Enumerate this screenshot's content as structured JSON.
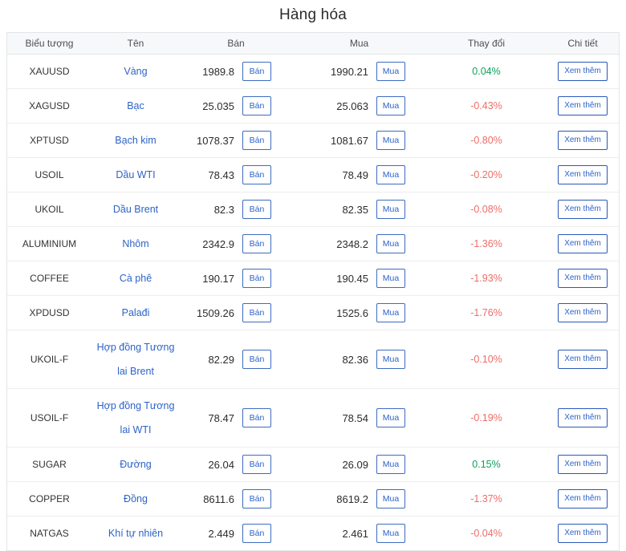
{
  "title": "Hàng hóa",
  "table": {
    "headers": {
      "symbol": "Biểu tượng",
      "name": "Tên",
      "sell": "Bán",
      "buy": "Mua",
      "change": "Thay đổi",
      "details": "Chi tiết"
    },
    "sell_button_label": "Bán",
    "buy_button_label": "Mua",
    "details_button_label": "Xem thêm",
    "rows": [
      {
        "symbol": "XAUUSD",
        "name": "Vàng",
        "sell": "1989.8",
        "buy": "1990.21",
        "change": "0.04%",
        "direction": "up"
      },
      {
        "symbol": "XAGUSD",
        "name": "Bạc",
        "sell": "25.035",
        "buy": "25.063",
        "change": "-0.43%",
        "direction": "down"
      },
      {
        "symbol": "XPTUSD",
        "name": "Bạch kim",
        "sell": "1078.37",
        "buy": "1081.67",
        "change": "-0.80%",
        "direction": "down"
      },
      {
        "symbol": "USOIL",
        "name": "Dầu WTI",
        "sell": "78.43",
        "buy": "78.49",
        "change": "-0.20%",
        "direction": "down"
      },
      {
        "symbol": "UKOIL",
        "name": "Dầu Brent",
        "sell": "82.3",
        "buy": "82.35",
        "change": "-0.08%",
        "direction": "down"
      },
      {
        "symbol": "ALUMINIUM",
        "name": "Nhôm",
        "sell": "2342.9",
        "buy": "2348.2",
        "change": "-1.36%",
        "direction": "down"
      },
      {
        "symbol": "COFFEE",
        "name": "Cà phê",
        "sell": "190.17",
        "buy": "190.45",
        "change": "-1.93%",
        "direction": "down"
      },
      {
        "symbol": "XPDUSD",
        "name": "Palađi",
        "sell": "1509.26",
        "buy": "1525.6",
        "change": "-1.76%",
        "direction": "down"
      },
      {
        "symbol": "UKOIL-F",
        "name": "Hợp đồng Tương lai Brent",
        "sell": "82.29",
        "buy": "82.36",
        "change": "-0.10%",
        "direction": "down"
      },
      {
        "symbol": "USOIL-F",
        "name": "Hợp đồng Tương lai WTI",
        "sell": "78.47",
        "buy": "78.54",
        "change": "-0.19%",
        "direction": "down"
      },
      {
        "symbol": "SUGAR",
        "name": "Đường",
        "sell": "26.04",
        "buy": "26.09",
        "change": "0.15%",
        "direction": "up"
      },
      {
        "symbol": "COPPER",
        "name": "Đồng",
        "sell": "8611.6",
        "buy": "8619.2",
        "change": "-1.37%",
        "direction": "down"
      },
      {
        "symbol": "NATGAS",
        "name": "Khí tự nhiên",
        "sell": "2.449",
        "buy": "2.461",
        "change": "-0.04%",
        "direction": "down"
      }
    ]
  },
  "colors": {
    "positive": "#0ba25a",
    "negative": "#ed6d68",
    "link_blue": "#2d63c8"
  }
}
